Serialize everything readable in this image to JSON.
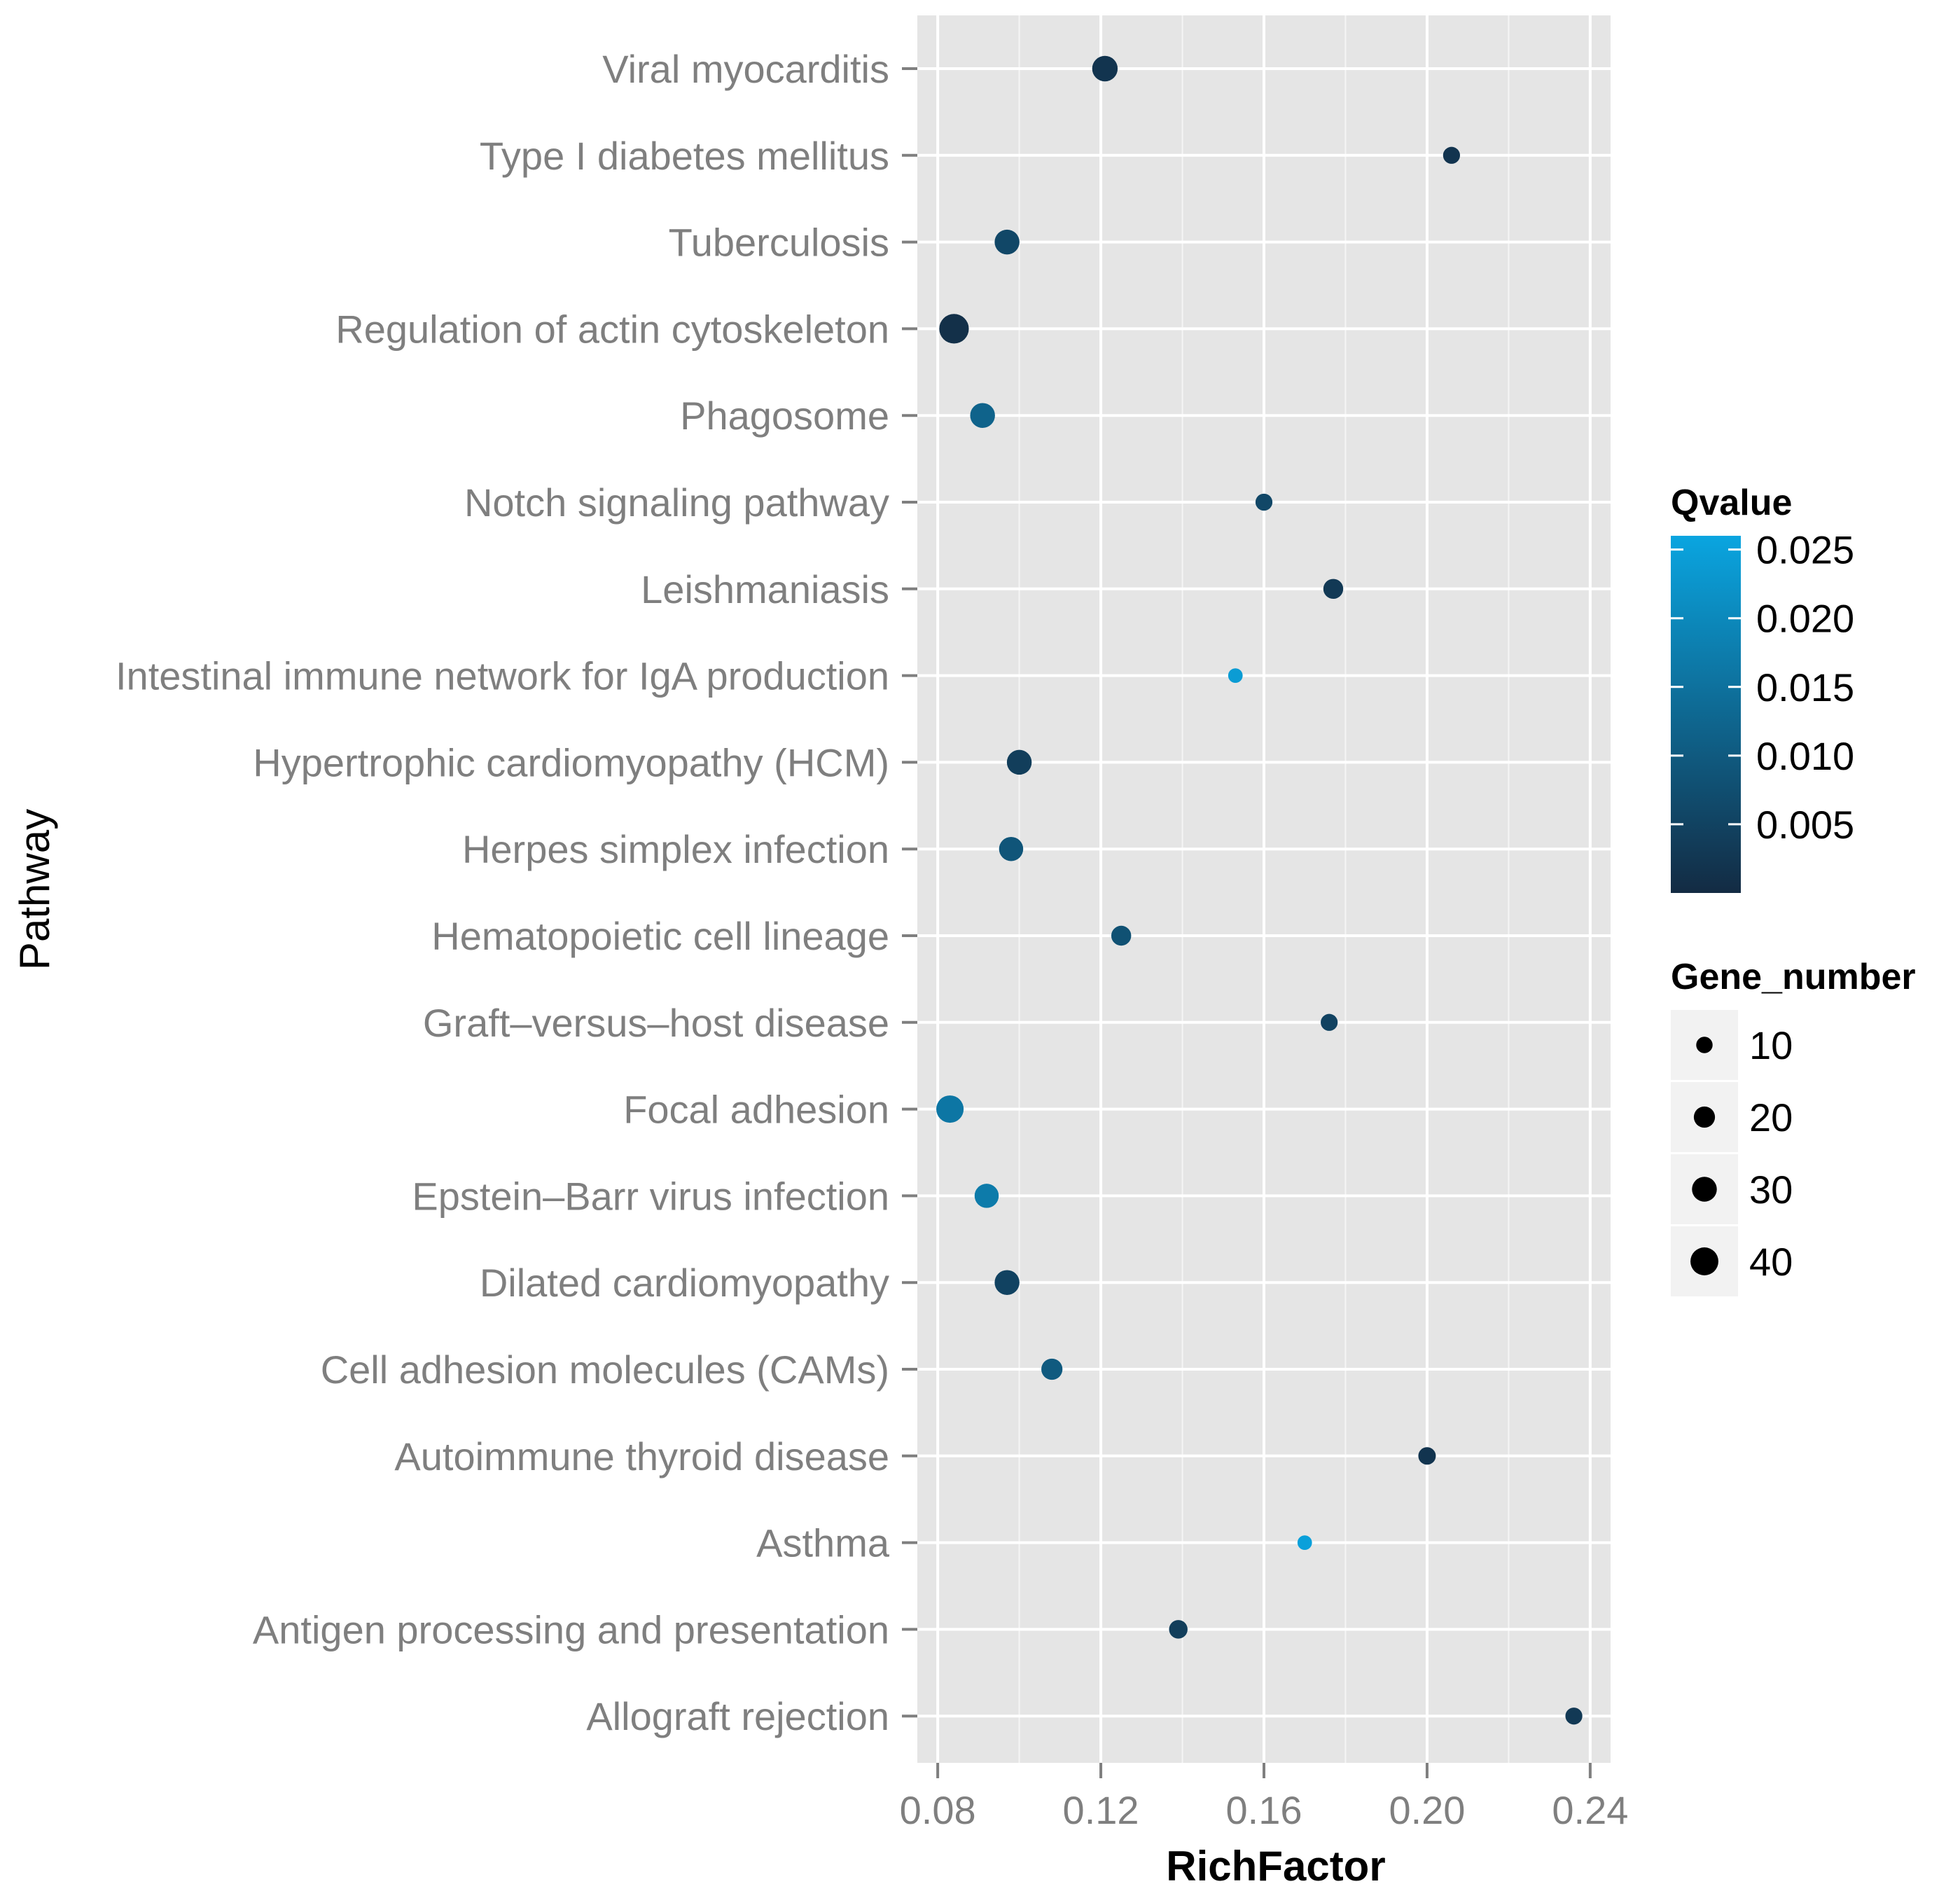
{
  "chart_data": {
    "type": "scatter",
    "title": "",
    "xlabel": "RichFactor",
    "ylabel": "Pathway",
    "xlim": [
      0.075,
      0.245
    ],
    "x_ticks": [
      0.08,
      0.12,
      0.16,
      0.2,
      0.24
    ],
    "x_tick_labels": [
      "0.08",
      "0.12",
      "0.16",
      "0.20",
      "0.24"
    ],
    "grid": true,
    "categories": [
      "Allograft rejection",
      "Antigen processing and presentation",
      "Asthma",
      "Autoimmune thyroid disease",
      "Cell adhesion molecules (CAMs)",
      "Dilated cardiomyopathy",
      "Epstein-Barr virus infection",
      "Focal adhesion",
      "Graft-versus-host disease",
      "Hematopoietic cell lineage",
      "Herpes simplex infection",
      "Hypertrophic cardiomyopathy (HCM)",
      "Intestinal immune network for IgA production",
      "Leishmaniasis",
      "Notch signaling pathway",
      "Phagosome",
      "Regulation of actin cytoskeleton",
      "Tuberculosis",
      "Type I diabetes mellitus",
      "Viral myocarditis"
    ],
    "category_labels": [
      "Allograft rejection",
      "Antigen processing and presentation",
      "Asthma",
      "Autoimmune thyroid disease",
      "Cell adhesion molecules (CAMs)",
      "Dilated cardiomyopathy",
      "Epstein–Barr virus infection",
      "Focal adhesion",
      "Graft–versus–host disease",
      "Hematopoietic cell lineage",
      "Herpes simplex infection",
      "Hypertrophic cardiomyopathy (HCM)",
      "Intestinal immune network for IgA production",
      "Leishmaniasis",
      "Notch signaling pathway",
      "Phagosome",
      "Regulation of actin cytoskeleton",
      "Tuberculosis",
      "Type I diabetes mellitus",
      "Viral myocarditis"
    ],
    "points": [
      {
        "pathway": "Allograft rejection",
        "rich_factor": 0.236,
        "gene_number": 11,
        "qvalue": 0.003
      },
      {
        "pathway": "Antigen processing and presentation",
        "rich_factor": 0.139,
        "gene_number": 14,
        "qvalue": 0.004
      },
      {
        "pathway": "Asthma",
        "rich_factor": 0.17,
        "gene_number": 7,
        "qvalue": 0.025
      },
      {
        "pathway": "Autoimmune thyroid disease",
        "rich_factor": 0.2,
        "gene_number": 12,
        "qvalue": 0.002
      },
      {
        "pathway": "Cell adhesion molecules (CAMs)",
        "rich_factor": 0.108,
        "gene_number": 20,
        "qvalue": 0.01
      },
      {
        "pathway": "Dilated cardiomyopathy",
        "rich_factor": 0.097,
        "gene_number": 30,
        "qvalue": 0.005
      },
      {
        "pathway": "Epstein-Barr virus infection",
        "rich_factor": 0.092,
        "gene_number": 28,
        "qvalue": 0.017
      },
      {
        "pathway": "Focal adhesion",
        "rich_factor": 0.083,
        "gene_number": 38,
        "qvalue": 0.016
      },
      {
        "pathway": "Graft-versus-host disease",
        "rich_factor": 0.176,
        "gene_number": 11,
        "qvalue": 0.005
      },
      {
        "pathway": "Hematopoietic cell lineage",
        "rich_factor": 0.125,
        "gene_number": 17,
        "qvalue": 0.008
      },
      {
        "pathway": "Herpes simplex infection",
        "rich_factor": 0.098,
        "gene_number": 28,
        "qvalue": 0.009
      },
      {
        "pathway": "Hypertrophic cardiomyopathy (HCM)",
        "rich_factor": 0.1,
        "gene_number": 30,
        "qvalue": 0.004
      },
      {
        "pathway": "Intestinal immune network for IgA production",
        "rich_factor": 0.153,
        "gene_number": 7,
        "qvalue": 0.024
      },
      {
        "pathway": "Leishmaniasis",
        "rich_factor": 0.177,
        "gene_number": 17,
        "qvalue": 0.003
      },
      {
        "pathway": "Notch signaling pathway",
        "rich_factor": 0.16,
        "gene_number": 11,
        "qvalue": 0.006
      },
      {
        "pathway": "Phagosome",
        "rich_factor": 0.091,
        "gene_number": 30,
        "qvalue": 0.012
      },
      {
        "pathway": "Regulation of actin cytoskeleton",
        "rich_factor": 0.084,
        "gene_number": 46,
        "qvalue": 0.001
      },
      {
        "pathway": "Tuberculosis",
        "rich_factor": 0.097,
        "gene_number": 30,
        "qvalue": 0.006
      },
      {
        "pathway": "Type I diabetes mellitus",
        "rich_factor": 0.206,
        "gene_number": 11,
        "qvalue": 0.002
      },
      {
        "pathway": "Viral myocarditis",
        "rich_factor": 0.121,
        "gene_number": 32,
        "qvalue": 0.002
      }
    ],
    "legend": {
      "color": {
        "title": "Qvalue",
        "range": [
          0.0,
          0.026
        ],
        "ticks": [
          0.005,
          0.01,
          0.015,
          0.02,
          0.025
        ],
        "tick_labels": [
          "0.005",
          "0.010",
          "0.015",
          "0.020",
          "0.025"
        ],
        "low_color": "#132b43",
        "high_color": "#0aa5e0"
      },
      "size": {
        "title": "Gene_number",
        "values": [
          10,
          20,
          30,
          40
        ],
        "labels": [
          "10",
          "20",
          "30",
          "40"
        ]
      },
      "position": "right"
    },
    "colors": {
      "panel_background": "#e5e5e5",
      "grid_line": "#ffffff",
      "tick_text": "#7f7f7f"
    }
  }
}
